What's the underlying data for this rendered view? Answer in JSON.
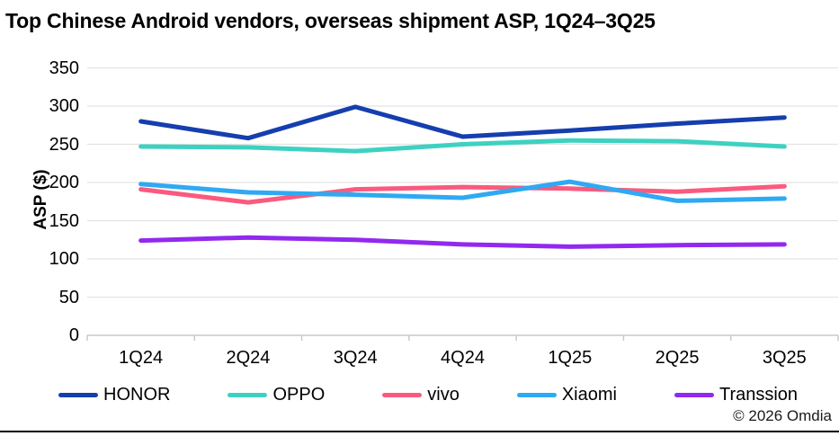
{
  "title": "Top Chinese Android vendors, overseas shipment ASP, 1Q24–3Q25",
  "footer": "© 2026 Omdia",
  "colors": {
    "honor": "#153EAE",
    "oppo": "#3DD1C1",
    "vivo": "#FA5A7E",
    "xiaomi": "#2FA9F2",
    "transsion": "#9129EF",
    "gridline": "#E3E3E3",
    "axis": "#C8C8C8"
  },
  "chart_data": {
    "type": "line",
    "title": "Top Chinese Android vendors, overseas shipment ASP, 1Q24–3Q25",
    "xlabel": "",
    "ylabel": "ASP ($)",
    "ylim": [
      0,
      350
    ],
    "yticks": [
      0,
      50,
      100,
      150,
      200,
      250,
      300,
      350
    ],
    "grid": true,
    "legend_position": "bottom",
    "categories": [
      "1Q24",
      "2Q24",
      "3Q24",
      "4Q24",
      "1Q25",
      "2Q25",
      "3Q25"
    ],
    "series": [
      {
        "name": "HONOR",
        "color": "#153EAE",
        "values": [
          280,
          258,
          299,
          260,
          268,
          277,
          285
        ]
      },
      {
        "name": "OPPO",
        "color": "#3DD1C1",
        "values": [
          247,
          246,
          241,
          250,
          255,
          254,
          247
        ]
      },
      {
        "name": "vivo",
        "color": "#FA5A7E",
        "values": [
          191,
          174,
          191,
          194,
          192,
          188,
          195
        ]
      },
      {
        "name": "Xiaomi",
        "color": "#2FA9F2",
        "values": [
          198,
          187,
          184,
          180,
          201,
          176,
          179
        ]
      },
      {
        "name": "Transsion",
        "color": "#9129EF",
        "values": [
          124,
          128,
          125,
          119,
          116,
          118,
          119
        ]
      }
    ]
  }
}
